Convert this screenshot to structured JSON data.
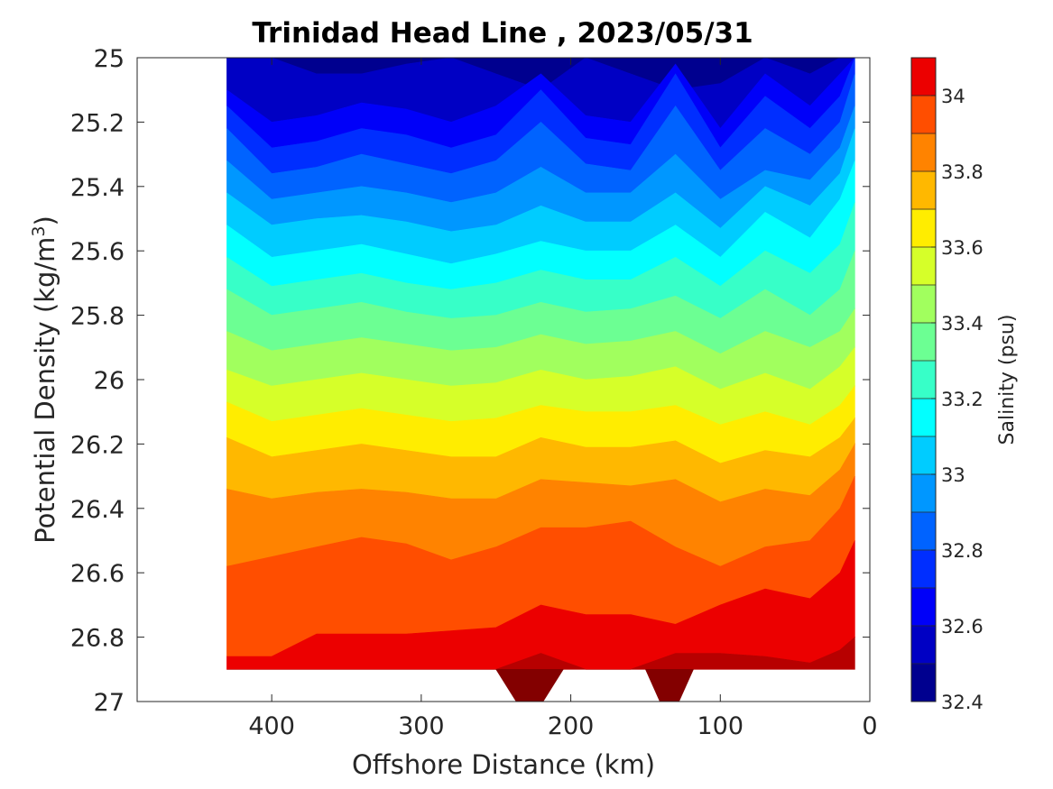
{
  "chart_data": {
    "type": "heatmap",
    "subtype": "filled-contour",
    "title": "Trinidad Head Line , 2023/05/31",
    "xlabel": "Offshore Distance (km)",
    "ylabel_main": "Potential Density (kg/m",
    "ylabel_sup": "3",
    "ylabel_close": ")",
    "colorbar_label": "Salinity (psu)",
    "xlim": [
      490,
      0
    ],
    "ylim": [
      25,
      27
    ],
    "x_reversed": true,
    "y_reversed": true,
    "x_ticks": [
      400,
      300,
      200,
      100,
      0
    ],
    "y_ticks": [
      25,
      25.2,
      25.4,
      25.6,
      25.8,
      26,
      26.2,
      26.4,
      26.6,
      26.8,
      27
    ],
    "colorbar_ticks": [
      32.4,
      32.6,
      32.8,
      33,
      33.2,
      33.4,
      33.6,
      33.8,
      34
    ],
    "colorbar_range": [
      32.4,
      34.1
    ],
    "levels": [
      32.4,
      32.5,
      32.6,
      32.7,
      32.8,
      32.9,
      33.0,
      33.1,
      33.2,
      33.3,
      33.4,
      33.5,
      33.6,
      33.7,
      33.8,
      33.9,
      34.0,
      34.1
    ],
    "colors": [
      "#00008f",
      "#0000c4",
      "#0000f9",
      "#002eff",
      "#0063ff",
      "#0097ff",
      "#00ccff",
      "#02ffff",
      "#37ffc8",
      "#6cff93",
      "#a1ff5e",
      "#d6ff29",
      "#ffed00",
      "#ffb800",
      "#ff8300",
      "#ff4e00",
      "#ec0000",
      "#b70000",
      "#830000"
    ],
    "data_extent": {
      "x_min": 10,
      "x_max": 430,
      "y_min": 25,
      "y_max": 26.9
    },
    "stations_x": [
      430,
      400,
      370,
      340,
      310,
      280,
      250,
      220,
      190,
      160,
      130,
      100,
      70,
      40,
      20,
      10
    ],
    "contours": [
      {
        "level": 32.5,
        "y": [
          25.0,
          25.0,
          25.05,
          25.05,
          25.02,
          25.0,
          25.05,
          25.1,
          25.0,
          25.05,
          25.1,
          25.08,
          25.0,
          25.05,
          25.0,
          25.0
        ]
      },
      {
        "level": 32.6,
        "y": [
          25.1,
          25.2,
          25.18,
          25.14,
          25.16,
          25.2,
          25.15,
          25.05,
          25.18,
          25.2,
          25.02,
          25.22,
          25.05,
          25.15,
          25.05,
          25.0
        ]
      },
      {
        "level": 32.7,
        "y": [
          25.15,
          25.28,
          25.26,
          25.22,
          25.24,
          25.28,
          25.24,
          25.1,
          25.25,
          25.27,
          25.05,
          25.28,
          25.12,
          25.22,
          25.12,
          25.0
        ]
      },
      {
        "level": 32.8,
        "y": [
          25.22,
          25.36,
          25.34,
          25.3,
          25.33,
          25.36,
          25.32,
          25.2,
          25.33,
          25.35,
          25.15,
          25.35,
          25.22,
          25.3,
          25.2,
          25.05
        ]
      },
      {
        "level": 32.9,
        "y": [
          25.32,
          25.44,
          25.42,
          25.4,
          25.42,
          25.45,
          25.42,
          25.34,
          25.42,
          25.42,
          25.3,
          25.44,
          25.35,
          25.38,
          25.28,
          25.15
        ]
      },
      {
        "level": 33.0,
        "y": [
          25.42,
          25.52,
          25.5,
          25.49,
          25.51,
          25.54,
          25.52,
          25.46,
          25.51,
          25.51,
          25.42,
          25.53,
          25.4,
          25.46,
          25.36,
          25.22
        ]
      },
      {
        "level": 33.1,
        "y": [
          25.52,
          25.62,
          25.6,
          25.58,
          25.61,
          25.64,
          25.61,
          25.57,
          25.6,
          25.6,
          25.52,
          25.62,
          25.48,
          25.56,
          25.44,
          25.32
        ]
      },
      {
        "level": 33.2,
        "y": [
          25.62,
          25.71,
          25.69,
          25.67,
          25.7,
          25.72,
          25.7,
          25.66,
          25.69,
          25.69,
          25.62,
          25.71,
          25.6,
          25.67,
          25.58,
          25.45
        ]
      },
      {
        "level": 33.3,
        "y": [
          25.72,
          25.8,
          25.78,
          25.76,
          25.79,
          25.81,
          25.8,
          25.76,
          25.79,
          25.78,
          25.74,
          25.81,
          25.72,
          25.8,
          25.72,
          25.6
        ]
      },
      {
        "level": 33.4,
        "y": [
          25.85,
          25.91,
          25.89,
          25.87,
          25.89,
          25.91,
          25.9,
          25.86,
          25.89,
          25.88,
          25.85,
          25.92,
          25.85,
          25.9,
          25.85,
          25.78
        ]
      },
      {
        "level": 33.5,
        "y": [
          25.97,
          26.02,
          26.0,
          25.98,
          26.0,
          26.02,
          26.01,
          25.97,
          26.0,
          25.99,
          25.96,
          26.03,
          25.98,
          26.03,
          25.96,
          25.9
        ]
      },
      {
        "level": 33.6,
        "y": [
          26.07,
          26.13,
          26.11,
          26.09,
          26.11,
          26.13,
          26.12,
          26.08,
          26.1,
          26.1,
          26.08,
          26.14,
          26.1,
          26.14,
          26.08,
          26.02
        ]
      },
      {
        "level": 33.7,
        "y": [
          26.18,
          26.24,
          26.22,
          26.2,
          26.22,
          26.24,
          26.24,
          26.18,
          26.21,
          26.21,
          26.19,
          26.26,
          26.22,
          26.24,
          26.18,
          26.12
        ]
      },
      {
        "level": 33.8,
        "y": [
          26.34,
          26.37,
          26.35,
          26.34,
          26.35,
          26.37,
          26.37,
          26.31,
          26.32,
          26.33,
          26.31,
          26.38,
          26.34,
          26.36,
          26.28,
          26.2
        ]
      },
      {
        "level": 33.9,
        "y": [
          26.58,
          26.55,
          26.52,
          26.49,
          26.51,
          26.56,
          26.52,
          26.46,
          26.46,
          26.44,
          26.52,
          26.58,
          26.52,
          26.5,
          26.4,
          26.3
        ]
      },
      {
        "level": 34.0,
        "y": [
          26.86,
          26.86,
          26.79,
          26.79,
          26.79,
          26.78,
          26.77,
          26.7,
          26.73,
          26.73,
          26.76,
          26.7,
          26.65,
          26.68,
          26.6,
          26.5
        ]
      },
      {
        "level": 34.1,
        "y": [
          26.9,
          26.9,
          26.9,
          26.9,
          26.9,
          26.9,
          26.9,
          26.85,
          26.9,
          26.9,
          26.85,
          26.85,
          26.86,
          26.88,
          26.84,
          26.8
        ]
      }
    ],
    "bottom_notches": [
      {
        "x_left": 250,
        "x_right": 205,
        "y_bottom": 27.0
      },
      {
        "x_left": 150,
        "x_right": 118,
        "y_bottom": 27.0
      }
    ]
  }
}
